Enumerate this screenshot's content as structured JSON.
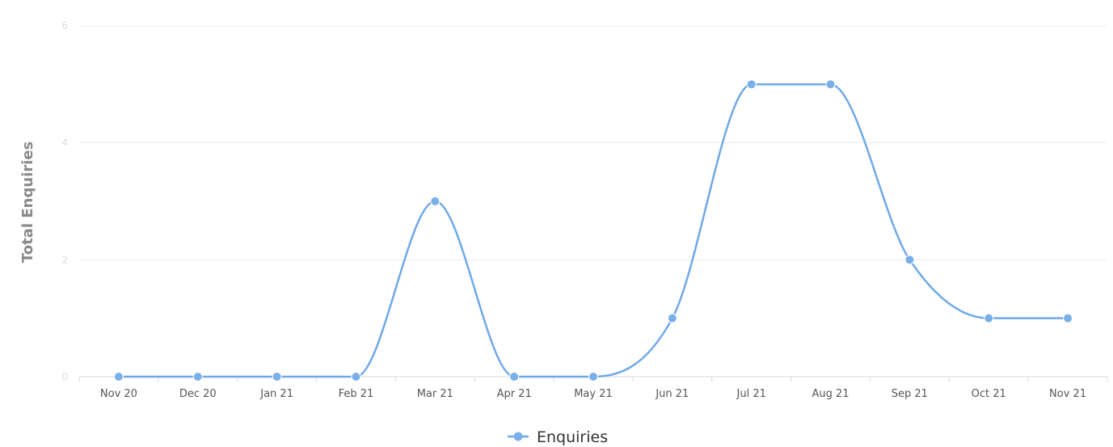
{
  "chart_data": {
    "type": "line",
    "smooth": true,
    "categories": [
      "Nov 20",
      "Dec 20",
      "Jan 21",
      "Feb 21",
      "Mar 21",
      "Apr 21",
      "May 21",
      "Jun 21",
      "Jul 21",
      "Aug 21",
      "Sep 21",
      "Oct 21",
      "Nov 21"
    ],
    "series": [
      {
        "name": "Enquiries",
        "values": [
          0,
          0,
          0,
          0,
          3,
          0,
          0,
          1,
          5,
          5,
          2,
          1,
          1
        ],
        "color": "#6fa8e8"
      }
    ],
    "title": "",
    "xlabel": "",
    "ylabel": "Total Enquiries",
    "ylim": [
      0,
      6
    ],
    "yticks": [
      0,
      2,
      4,
      6
    ],
    "grid": true,
    "legend": "bottom-center"
  },
  "colors": {
    "line": "#6fa8e8",
    "marker": "#7ab0e8",
    "grid": "#ececec",
    "axis": "#d8d8d8"
  }
}
